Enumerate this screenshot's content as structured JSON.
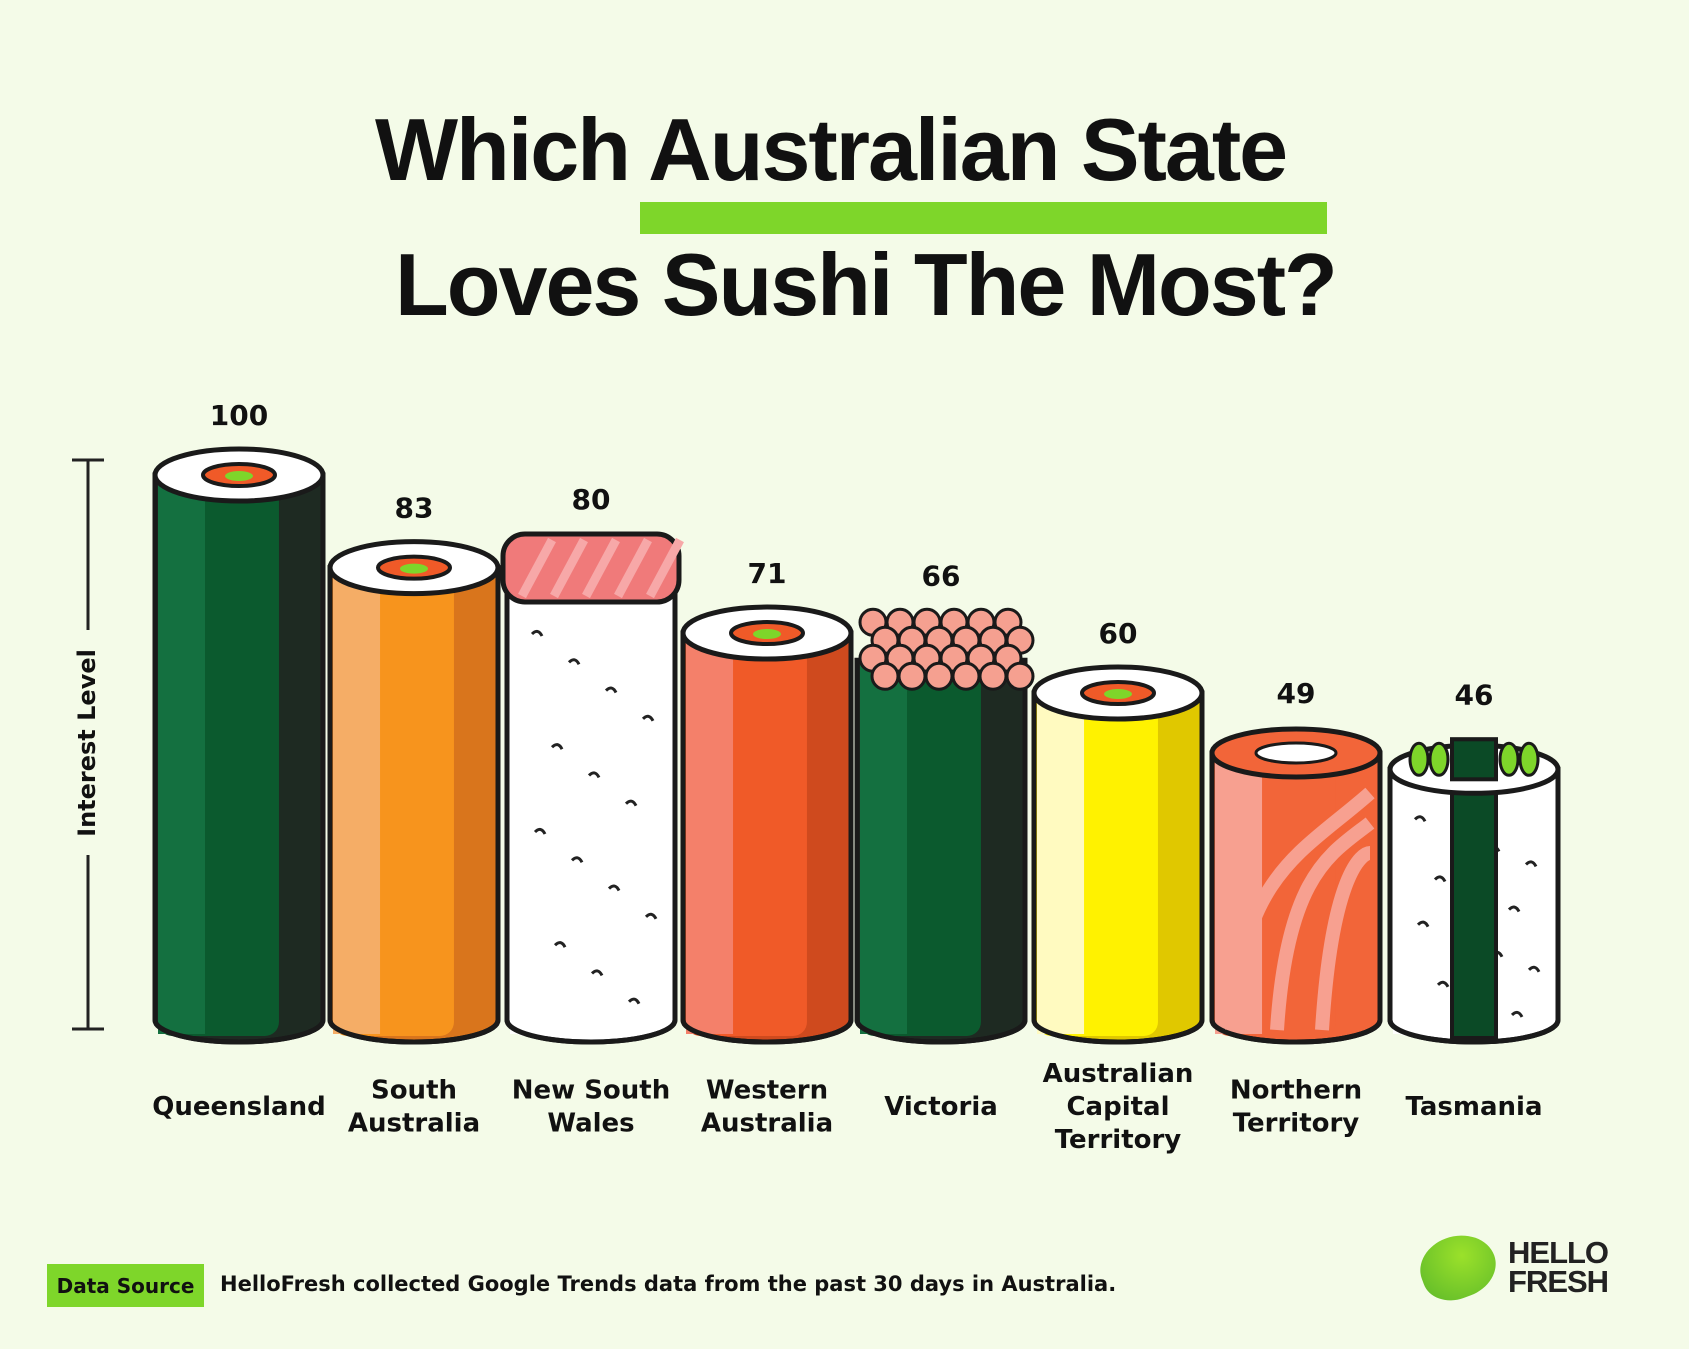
{
  "title": {
    "line1_pre": "Which ",
    "line1_highlight": "Australian State",
    "line2": "Loves Sushi The Most?",
    "highlight_color": "#7ed62a"
  },
  "chart_data": {
    "type": "bar",
    "title": "Which Australian State Loves Sushi The Most?",
    "ylabel": "Interest Level",
    "xlabel": "",
    "ylim": [
      0,
      100
    ],
    "grid": false,
    "categories": [
      "Queensland",
      "South Australia",
      "New South Wales",
      "Western Australia",
      "Victoria",
      "Australian Capital Territory",
      "Northern Territory",
      "Tasmania"
    ],
    "category_lines": [
      [
        "Queensland"
      ],
      [
        "South",
        "Australia"
      ],
      [
        "New South",
        "Wales"
      ],
      [
        "Western",
        "Australia"
      ],
      [
        "Victoria"
      ],
      [
        "Australian",
        "Capital",
        "Territory"
      ],
      [
        "Northern",
        "Territory"
      ],
      [
        "Tasmania"
      ]
    ],
    "values": [
      100,
      83,
      80,
      71,
      66,
      60,
      49,
      46
    ],
    "value_labels": [
      "100",
      "83",
      "80",
      "71",
      "66",
      "60",
      "49",
      "46"
    ],
    "bar_styles": [
      {
        "body": "#0b5a2e",
        "light": "#147040",
        "dark": "#1e2a22",
        "top": "roll"
      },
      {
        "body": "#f7941d",
        "light": "#f5ad66",
        "dark": "#d9751c",
        "top": "roll"
      },
      {
        "body": "#ffffff",
        "light": "#ffffff",
        "dark": "#ffffff",
        "top": "nigiri"
      },
      {
        "body": "#f05a28",
        "light": "#f4806a",
        "dark": "#cf4a1e",
        "top": "roll"
      },
      {
        "body": "#0b5a2e",
        "light": "#147040",
        "dark": "#1e2a22",
        "top": "roe"
      },
      {
        "body": "#fff200",
        "light": "#fffac0",
        "dark": "#e0c800",
        "top": "roll"
      },
      {
        "body": "#f26539",
        "light": "#f7a090",
        "dark": "#f26539",
        "top": "tube"
      },
      {
        "body": "#ffffff",
        "light": "#ffffff",
        "dark": "#ffffff",
        "top": "gunkan"
      }
    ]
  },
  "footer": {
    "source_label": "Data Source",
    "source_text": "HelloFresh collected Google Trends data from the past 30 days in Australia."
  },
  "logo": {
    "line1": "HELLO",
    "line2": "FRESH"
  }
}
